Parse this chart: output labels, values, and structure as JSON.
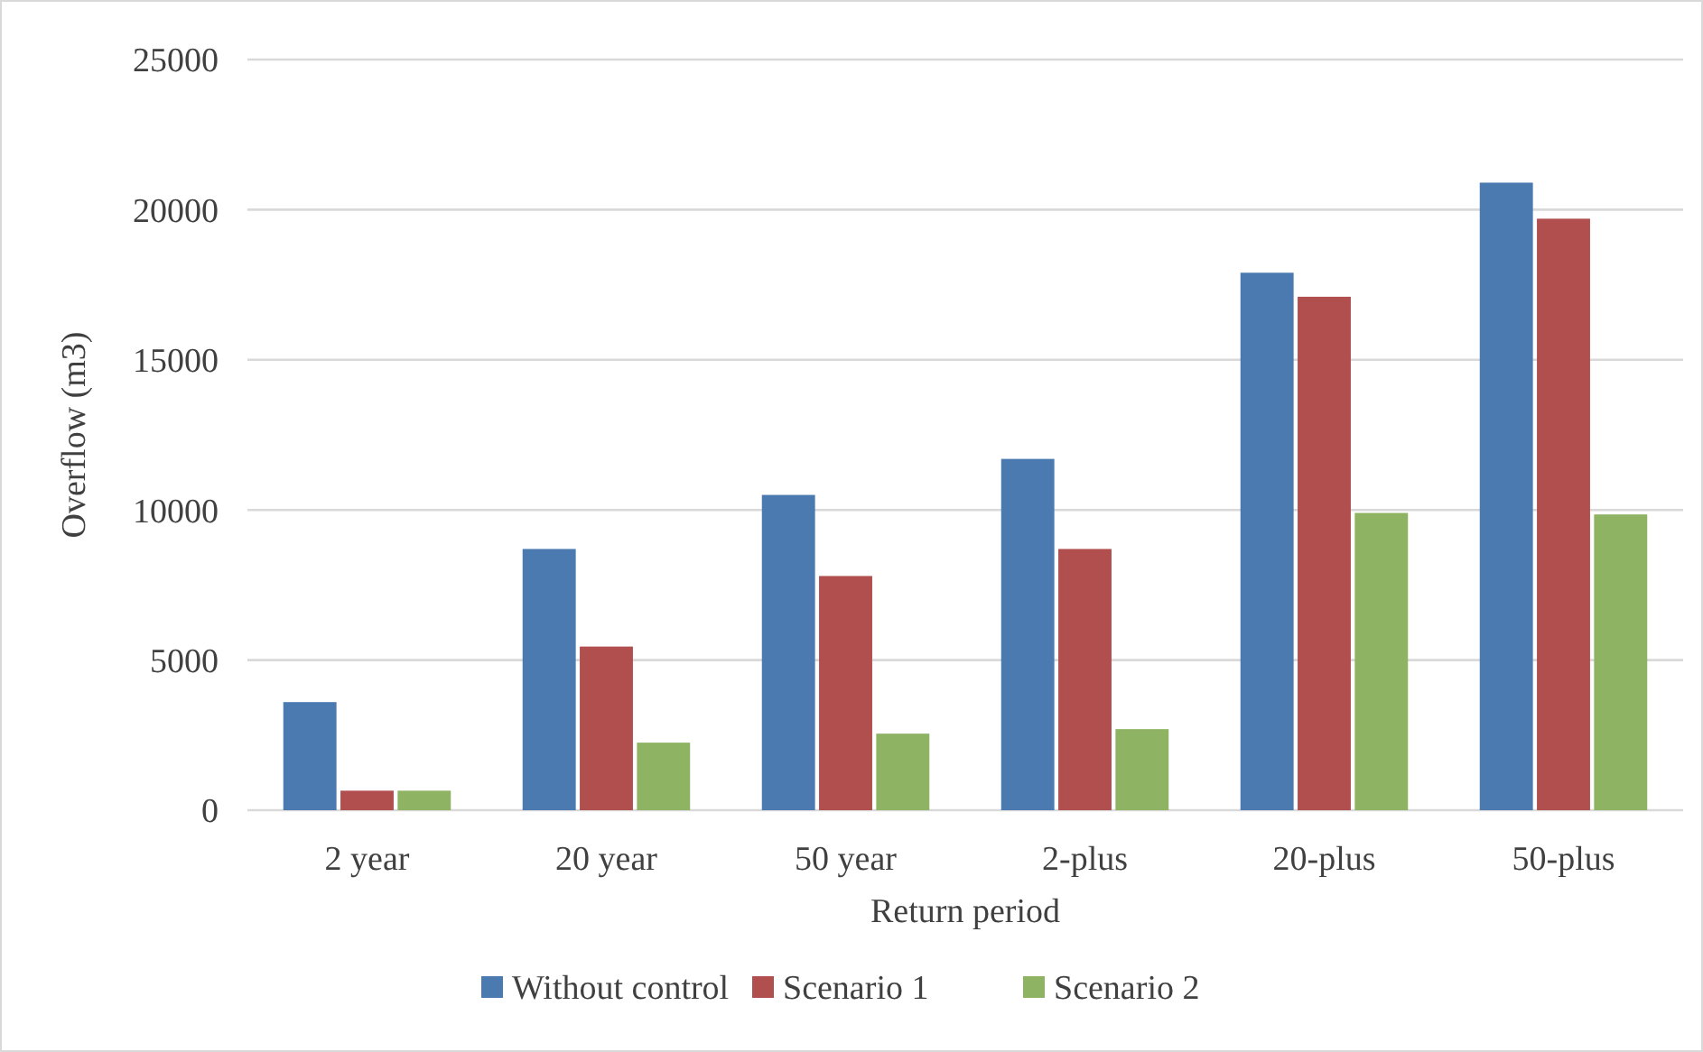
{
  "chart_data": {
    "type": "bar",
    "xlabel": "Return period",
    "ylabel": "Overflow (m3)",
    "categories": [
      "2 year",
      "20 year",
      "50 year",
      "2-plus",
      "20-plus",
      "50-plus"
    ],
    "series": [
      {
        "name": "Without control",
        "color": "#4a7ab0",
        "values": [
          3600,
          8700,
          10500,
          11700,
          17900,
          20900
        ]
      },
      {
        "name": "Scenario 1",
        "color": "#b04f4d",
        "values": [
          650,
          5450,
          7800,
          8700,
          17100,
          19700
        ]
      },
      {
        "name": "Scenario 2",
        "color": "#8db363",
        "values": [
          650,
          2250,
          2550,
          2700,
          9900,
          9850
        ]
      }
    ],
    "ylim": [
      0,
      25000
    ],
    "yticks": [
      0,
      5000,
      10000,
      15000,
      20000,
      25000
    ],
    "grid": "y",
    "legend": "bottom"
  }
}
